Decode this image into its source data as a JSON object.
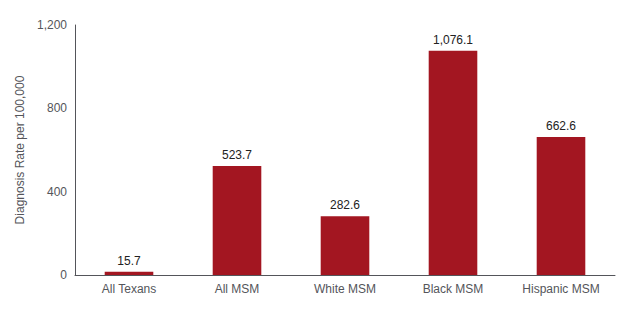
{
  "chart_data": {
    "type": "bar",
    "categories": [
      "All Texans",
      "All MSM",
      "White MSM",
      "Black MSM",
      "Hispanic MSM"
    ],
    "values": [
      15.7,
      523.7,
      282.6,
      1076.1,
      662.6
    ],
    "value_labels": [
      "15.7",
      "523.7",
      "282.6",
      "1,076.1",
      "662.6"
    ],
    "data_labels": true,
    "color": "#A31621",
    "ylabel": "Diagnosis Rate per 100,000",
    "ylim": [
      0,
      1200
    ],
    "yticks": [
      0,
      400,
      800,
      {
        "value": 1200,
        "label": "1,200"
      }
    ],
    "grid": false
  }
}
